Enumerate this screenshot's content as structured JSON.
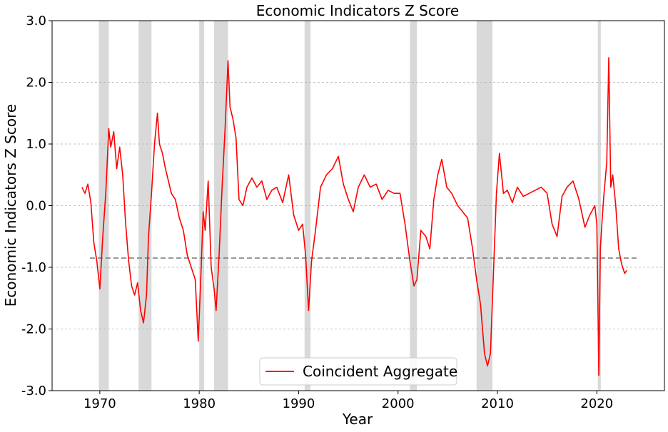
{
  "chart_data": {
    "type": "line",
    "title": "Economic Indicators Z Score",
    "xlabel": "Year",
    "ylabel": "Economic Indicators Z Score",
    "xlim": [
      1965.2,
      2026.8
    ],
    "ylim": [
      -3.0,
      3.0
    ],
    "x_ticks": [
      1970,
      1980,
      1990,
      2000,
      2010,
      2020
    ],
    "x_tick_labels": [
      "1970",
      "1980",
      "1990",
      "2000",
      "2010",
      "2020"
    ],
    "y_ticks": [
      -3.0,
      -2.0,
      -1.0,
      0.0,
      1.0,
      2.0,
      3.0
    ],
    "y_tick_labels": [
      "-3.0",
      "-2.0",
      "-1.0",
      "0.0",
      "1.0",
      "2.0",
      "3.0"
    ],
    "grid": "horizontal dashed",
    "legend": {
      "position": "bottom-center",
      "entries": [
        "Coincident Aggregate"
      ]
    },
    "recessions": [
      [
        1969.9,
        1970.9
      ],
      [
        1973.9,
        1975.2
      ],
      [
        1980.0,
        1980.5
      ],
      [
        1981.5,
        1982.9
      ],
      [
        1990.6,
        1991.2
      ],
      [
        2001.2,
        2001.9
      ],
      [
        2007.9,
        2009.5
      ],
      [
        2020.1,
        2020.4
      ]
    ],
    "threshold": {
      "value": -0.85,
      "x_start": 1969.0,
      "x_end": 2024.0,
      "color": "#777777"
    },
    "series": [
      {
        "name": "Coincident Aggregate",
        "color": "#ff0000",
        "x": [
          1968.2,
          1968.5,
          1968.8,
          1969.1,
          1969.4,
          1969.7,
          1970.0,
          1970.3,
          1970.6,
          1970.9,
          1971.1,
          1971.4,
          1971.7,
          1972.0,
          1972.3,
          1972.6,
          1972.9,
          1973.2,
          1973.5,
          1973.8,
          1974.1,
          1974.4,
          1974.7,
          1974.9,
          1975.2,
          1975.5,
          1975.8,
          1976.0,
          1976.3,
          1976.6,
          1976.9,
          1977.2,
          1977.6,
          1978.0,
          1978.4,
          1978.8,
          1979.2,
          1979.6,
          1979.9,
          1980.2,
          1980.4,
          1980.6,
          1980.9,
          1981.2,
          1981.5,
          1981.7,
          1982.0,
          1982.3,
          1982.6,
          1982.9,
          1983.1,
          1983.4,
          1983.7,
          1984.0,
          1984.4,
          1984.8,
          1985.3,
          1985.8,
          1986.3,
          1986.8,
          1987.3,
          1987.8,
          1988.4,
          1989.0,
          1989.5,
          1990.0,
          1990.4,
          1990.7,
          1991.0,
          1991.3,
          1991.7,
          1992.2,
          1992.8,
          1993.4,
          1994.0,
          1994.5,
          1995.0,
          1995.5,
          1996.0,
          1996.6,
          1997.2,
          1997.8,
          1998.4,
          1999.0,
          1999.6,
          2000.2,
          2000.7,
          2001.2,
          2001.6,
          2001.9,
          2002.3,
          2002.8,
          2003.2,
          2003.6,
          2004.0,
          2004.4,
          2004.9,
          2005.4,
          2006.0,
          2006.5,
          2007.0,
          2007.5,
          2007.9,
          2008.3,
          2008.7,
          2009.0,
          2009.3,
          2009.6,
          2009.9,
          2010.2,
          2010.6,
          2011.0,
          2011.5,
          2012.0,
          2012.6,
          2013.2,
          2013.8,
          2014.4,
          2015.0,
          2015.5,
          2016.0,
          2016.5,
          2017.0,
          2017.6,
          2018.2,
          2018.8,
          2019.3,
          2019.8,
          2020.0,
          2020.2,
          2020.35,
          2020.5,
          2020.7,
          2021.0,
          2021.2,
          2021.4,
          2021.6,
          2021.9,
          2022.2,
          2022.5,
          2022.8,
          2023.0
        ],
        "values": [
          0.3,
          0.2,
          0.35,
          0.05,
          -0.6,
          -0.9,
          -1.35,
          -0.5,
          0.2,
          1.25,
          0.95,
          1.2,
          0.6,
          0.95,
          0.5,
          -0.3,
          -0.9,
          -1.3,
          -1.45,
          -1.25,
          -1.7,
          -1.9,
          -1.45,
          -0.5,
          0.2,
          1.0,
          1.5,
          1.0,
          0.85,
          0.6,
          0.4,
          0.2,
          0.1,
          -0.2,
          -0.4,
          -0.8,
          -1.0,
          -1.2,
          -2.2,
          -1.0,
          -0.1,
          -0.4,
          0.4,
          -1.0,
          -1.35,
          -1.7,
          -0.8,
          0.3,
          1.25,
          2.35,
          1.6,
          1.4,
          1.1,
          0.1,
          0.0,
          0.3,
          0.45,
          0.3,
          0.4,
          0.1,
          0.25,
          0.3,
          0.05,
          0.5,
          -0.15,
          -0.4,
          -0.3,
          -0.8,
          -1.7,
          -0.9,
          -0.4,
          0.3,
          0.5,
          0.6,
          0.8,
          0.35,
          0.1,
          -0.1,
          0.3,
          0.5,
          0.3,
          0.35,
          0.1,
          0.25,
          0.2,
          0.2,
          -0.3,
          -0.9,
          -1.3,
          -1.2,
          -0.4,
          -0.5,
          -0.7,
          0.1,
          0.5,
          0.75,
          0.3,
          0.2,
          0.0,
          -0.1,
          -0.2,
          -0.7,
          -1.2,
          -1.6,
          -2.4,
          -2.6,
          -2.4,
          -1.1,
          0.2,
          0.85,
          0.2,
          0.25,
          0.05,
          0.3,
          0.15,
          0.2,
          0.25,
          0.3,
          0.2,
          -0.3,
          -0.5,
          0.15,
          0.3,
          0.4,
          0.1,
          -0.35,
          -0.15,
          0.0,
          -0.3,
          -2.75,
          -0.7,
          -0.3,
          0.15,
          0.7,
          2.4,
          0.3,
          0.5,
          0.0,
          -0.7,
          -0.95,
          -1.1,
          -1.05
        ]
      }
    ]
  }
}
